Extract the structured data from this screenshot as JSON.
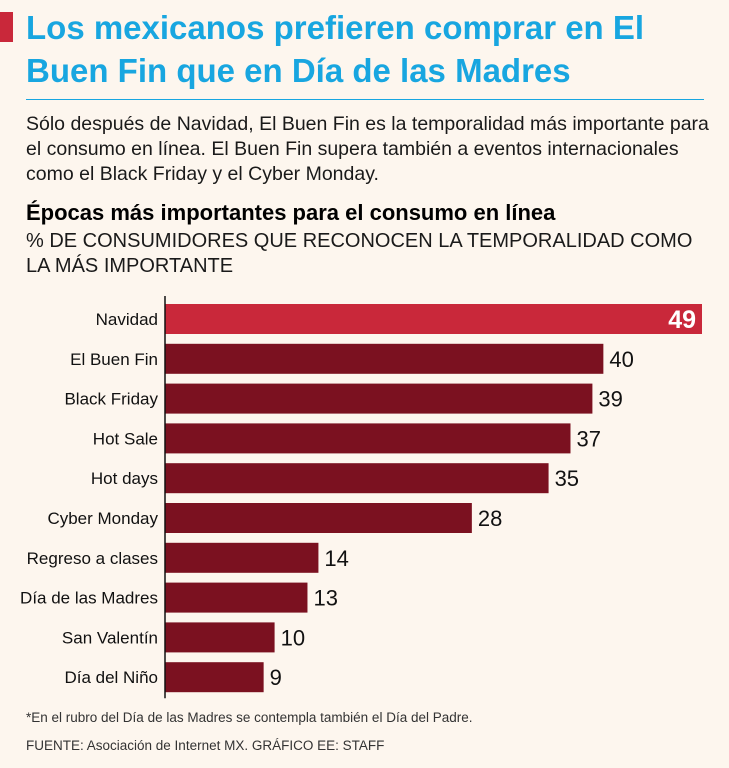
{
  "header": {
    "title": "Los mexicanos prefieren comprar en El Buen Fin que en Día de las Madres",
    "subtitle": "Sólo después de Navidad, El Buen Fin es la temporalidad más importante para el consumo en línea. El Buen Fin supera también a eventos internacionales como el Black Friday y el Cyber Monday."
  },
  "colors": {
    "title": "#18a6e0",
    "highlight_bar": "#c9283a",
    "bar": "#7b1120",
    "background": "#fdf6ee"
  },
  "chart_data": {
    "type": "bar",
    "orientation": "horizontal",
    "title": "Épocas más importantes para el consumo en línea",
    "subtitle": "% DE CONSUMIDORES QUE RECONOCEN LA TEMPORALIDAD COMO LA MÁS IMPORTANTE",
    "categories": [
      "Navidad",
      "El Buen Fin",
      "Black Friday",
      "Hot Sale",
      "Hot days",
      "Cyber Monday",
      "Regreso a clases",
      "Día de las Madres",
      "San Valentín",
      "Día del Niño"
    ],
    "values": [
      49,
      40,
      39,
      37,
      35,
      28,
      14,
      13,
      10,
      9
    ],
    "highlight_index": 0,
    "xlim": [
      0,
      49
    ],
    "xlabel": "",
    "ylabel": ""
  },
  "footer": {
    "footnote": "*En el rubro del Día de las Madres se contempla también el Día del Padre.",
    "source": "FUENTE: Asociación de Internet MX. GRÁFICO EE: STAFF"
  }
}
